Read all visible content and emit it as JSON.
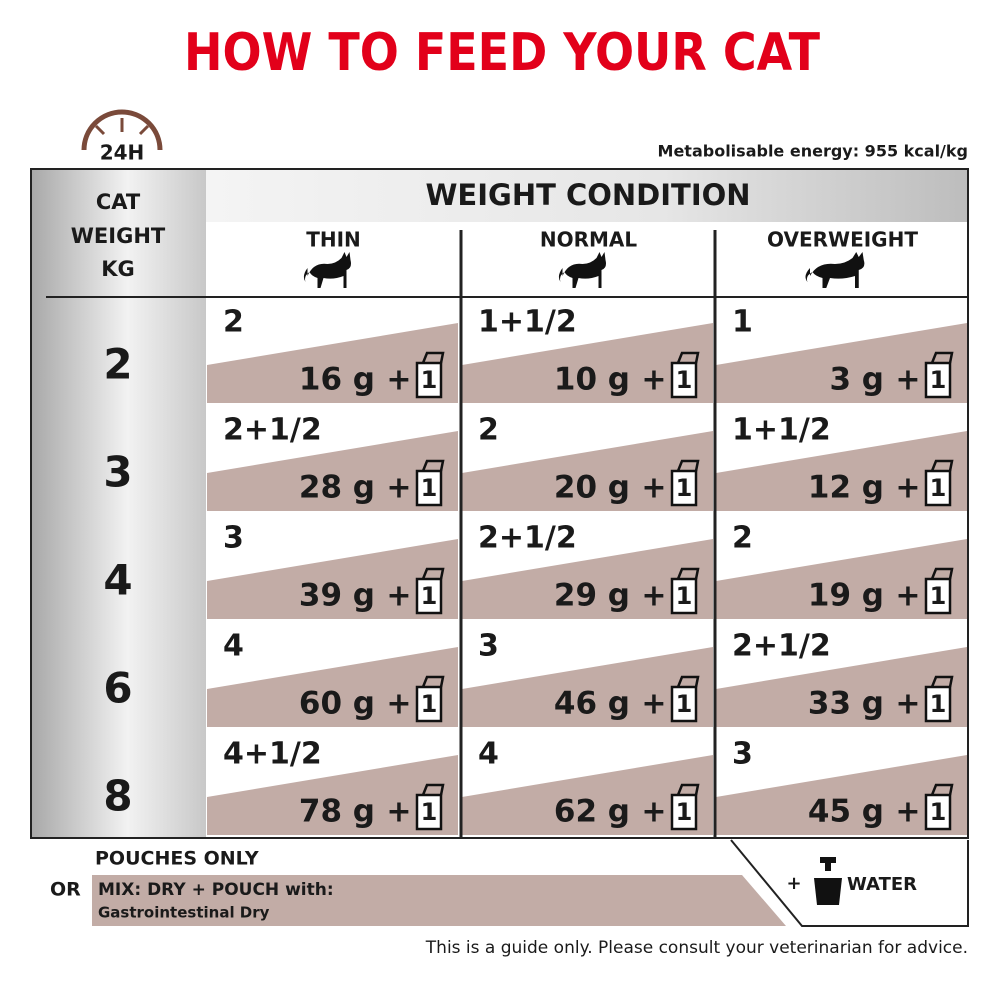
{
  "header": {
    "title": "HOW TO FEED YOUR CAT",
    "badge": "24H",
    "energy_note": "Metabolisable energy: 955 kcal/kg"
  },
  "table": {
    "weight_header": [
      "CAT",
      "WEIGHT",
      "KG"
    ],
    "condition_header": "WEIGHT CONDITION",
    "columns": [
      "THIN",
      "NORMAL",
      "OVERWEIGHT"
    ],
    "plus": "+",
    "pouch_label": "1",
    "rows": [
      {
        "weight": "2",
        "cells": [
          {
            "pouches": "2",
            "dry": "16 g"
          },
          {
            "pouches": "1+1/2",
            "dry": "10 g"
          },
          {
            "pouches": "1",
            "dry": "3 g"
          }
        ]
      },
      {
        "weight": "3",
        "cells": [
          {
            "pouches": "2+1/2",
            "dry": "28 g"
          },
          {
            "pouches": "2",
            "dry": "20 g"
          },
          {
            "pouches": "1+1/2",
            "dry": "12 g"
          }
        ]
      },
      {
        "weight": "4",
        "cells": [
          {
            "pouches": "3",
            "dry": "39 g"
          },
          {
            "pouches": "2+1/2",
            "dry": "29 g"
          },
          {
            "pouches": "2",
            "dry": "19 g"
          }
        ]
      },
      {
        "weight": "6",
        "cells": [
          {
            "pouches": "4",
            "dry": "60 g"
          },
          {
            "pouches": "3",
            "dry": "46 g"
          },
          {
            "pouches": "2+1/2",
            "dry": "33 g"
          }
        ]
      },
      {
        "weight": "8",
        "cells": [
          {
            "pouches": "4+1/2",
            "dry": "78 g"
          },
          {
            "pouches": "4",
            "dry": "62 g"
          },
          {
            "pouches": "3",
            "dry": "45 g"
          }
        ]
      }
    ]
  },
  "footer": {
    "pouches_only": "POUCHES ONLY",
    "or": "OR",
    "mix": "MIX: DRY + POUCH with:",
    "dry_product": "Gastrointestinal Dry",
    "water_plus": "+",
    "water": "WATER",
    "disclaimer": "This is a guide only. Please consult your veterinarian for advice."
  }
}
